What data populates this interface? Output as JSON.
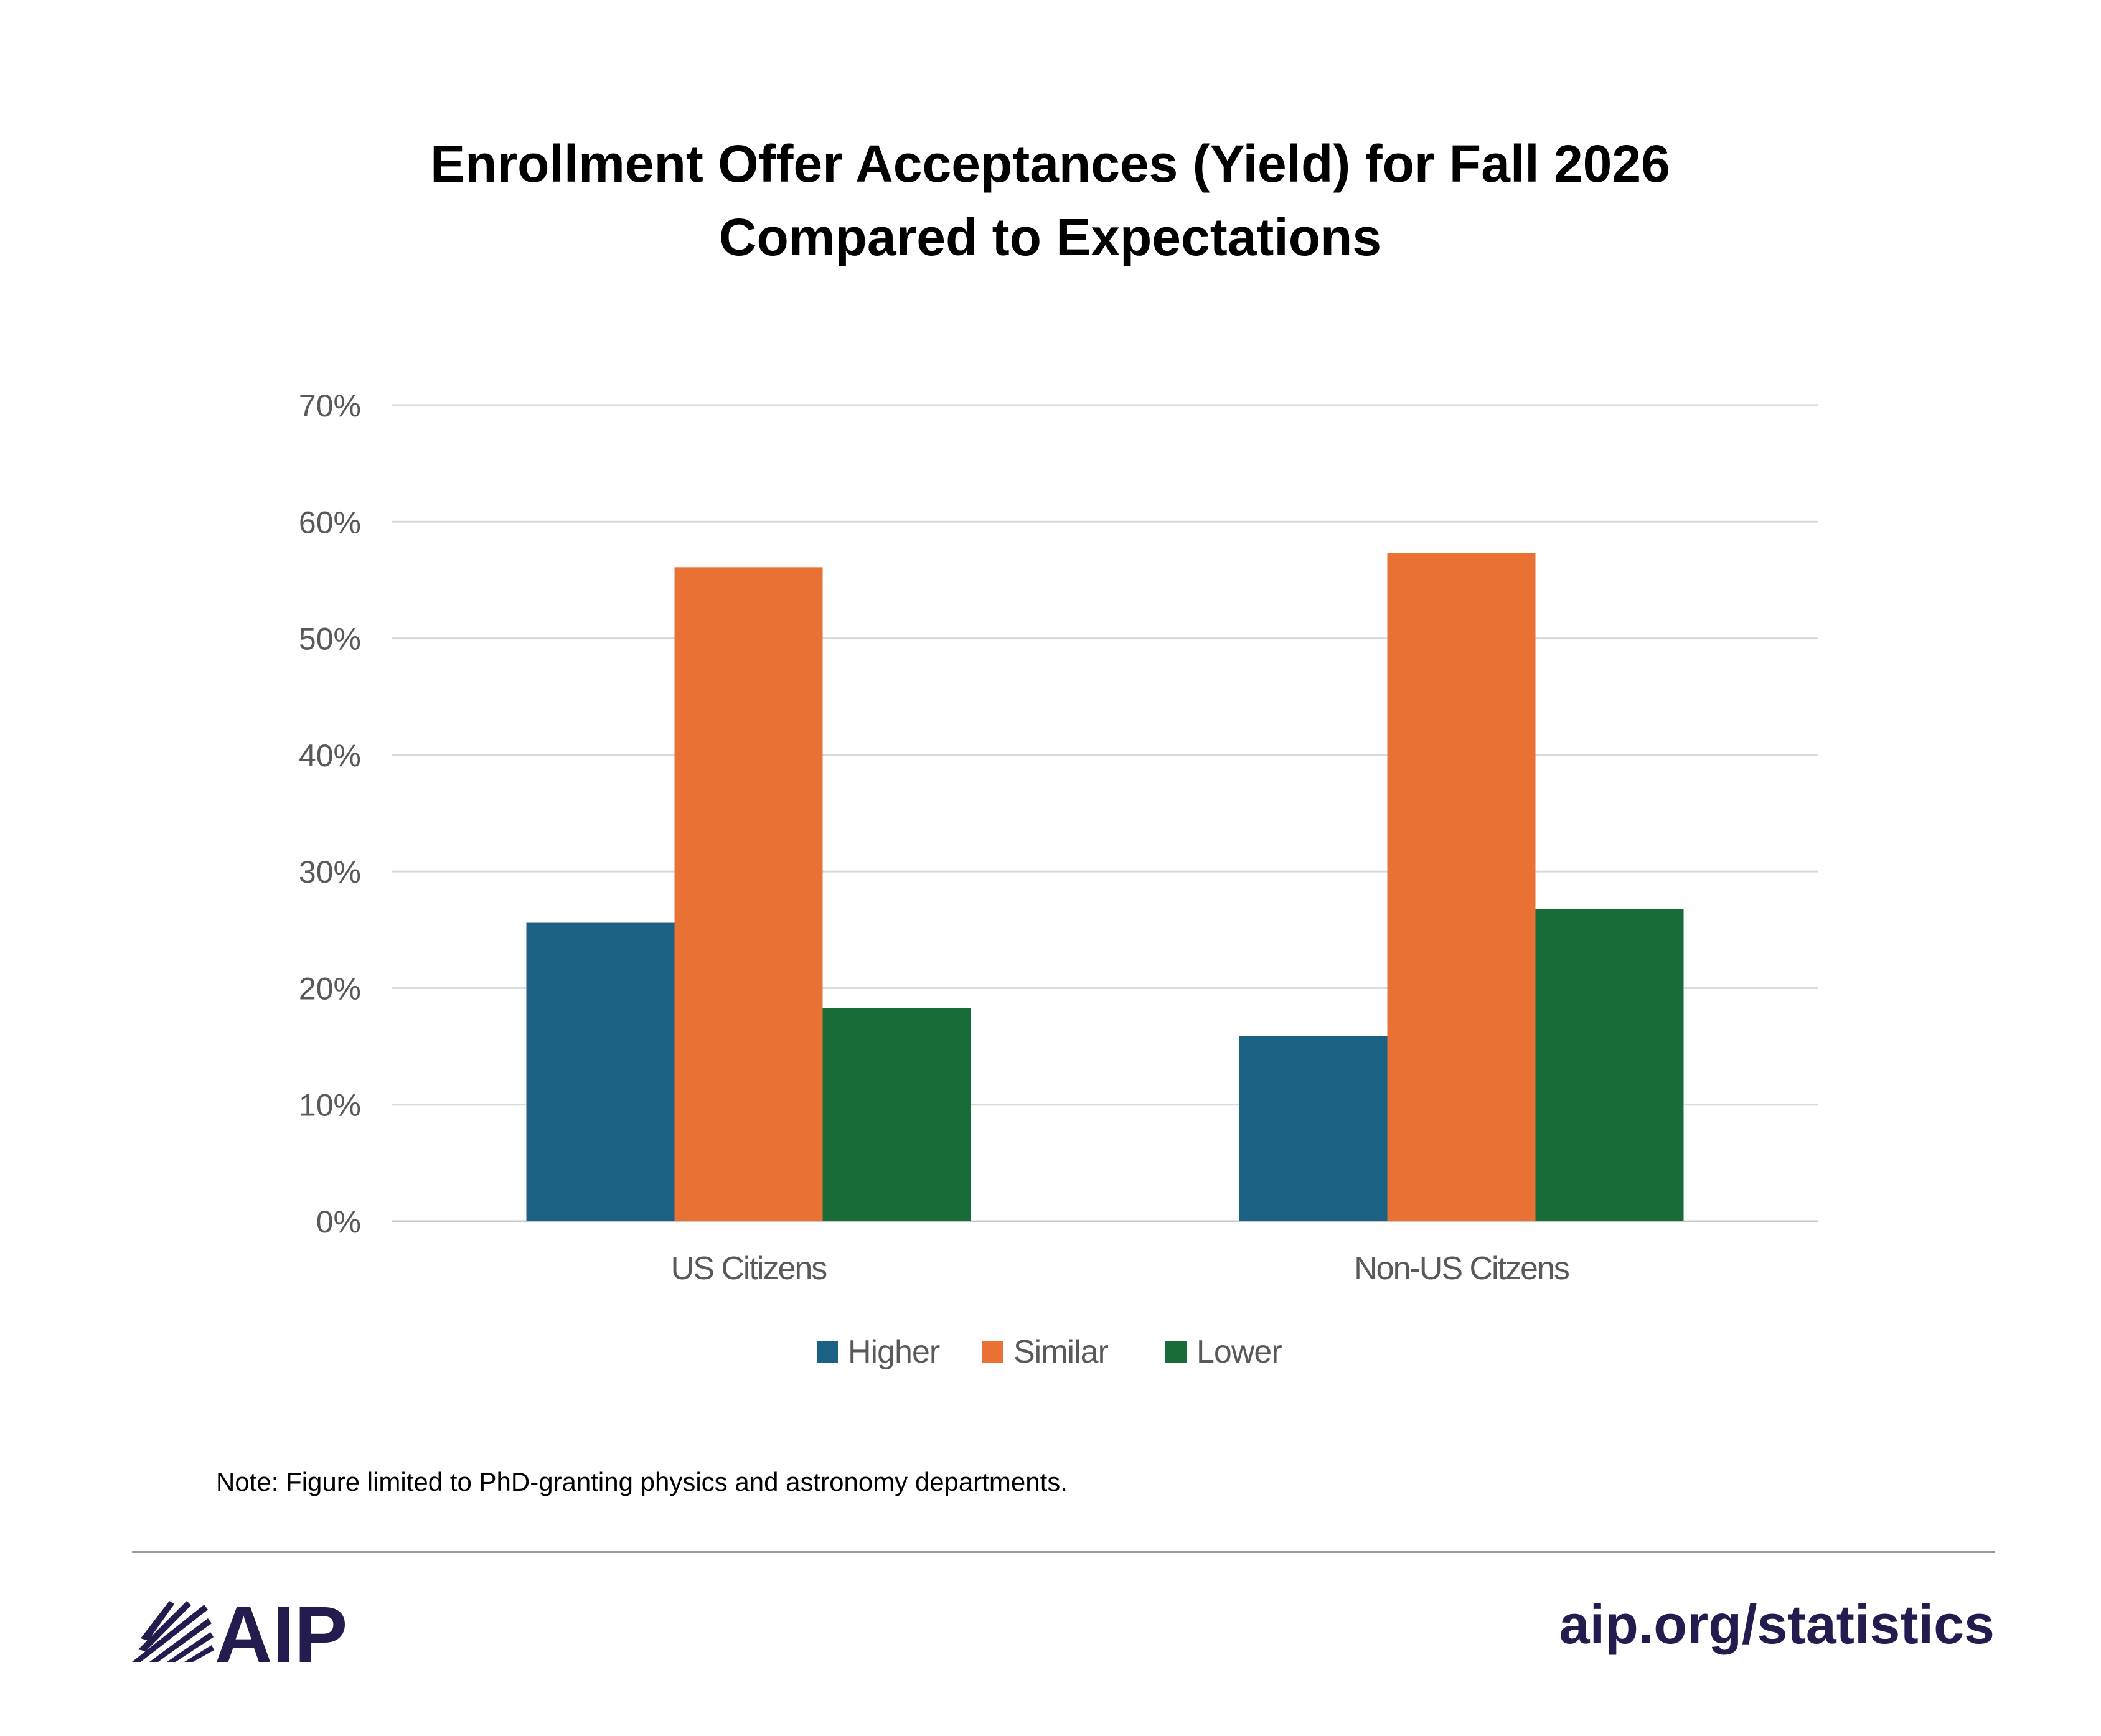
{
  "chart_data": {
    "type": "bar",
    "title": "Enrollment Offer Acceptances (Yield) for Fall 2026",
    "subtitle": "Compared to Expectations",
    "categories": [
      "US Citizens",
      "Non-US Citzens"
    ],
    "series": [
      {
        "name": "Higher",
        "values": [
          25.6,
          15.9
        ],
        "color": "#1a6184"
      },
      {
        "name": "Similar",
        "values": [
          56.1,
          57.3
        ],
        "color": "#ea7134"
      },
      {
        "name": "Lower",
        "values": [
          18.3,
          26.8
        ],
        "color": "#186d37"
      }
    ],
    "ylim": [
      0,
      70
    ],
    "ytick_step": 10,
    "ytick_format": "percent",
    "xlabel": "",
    "ylabel": "",
    "grid": true,
    "legend_position": "bottom"
  },
  "note": "Note: Figure limited to PhD-granting physics and astronomy departments.",
  "footer": {
    "logo_text": "AIP",
    "url": "aip.org/statistics",
    "brand_color": "#221c4f",
    "logo_icon": "aip-burst-icon"
  }
}
